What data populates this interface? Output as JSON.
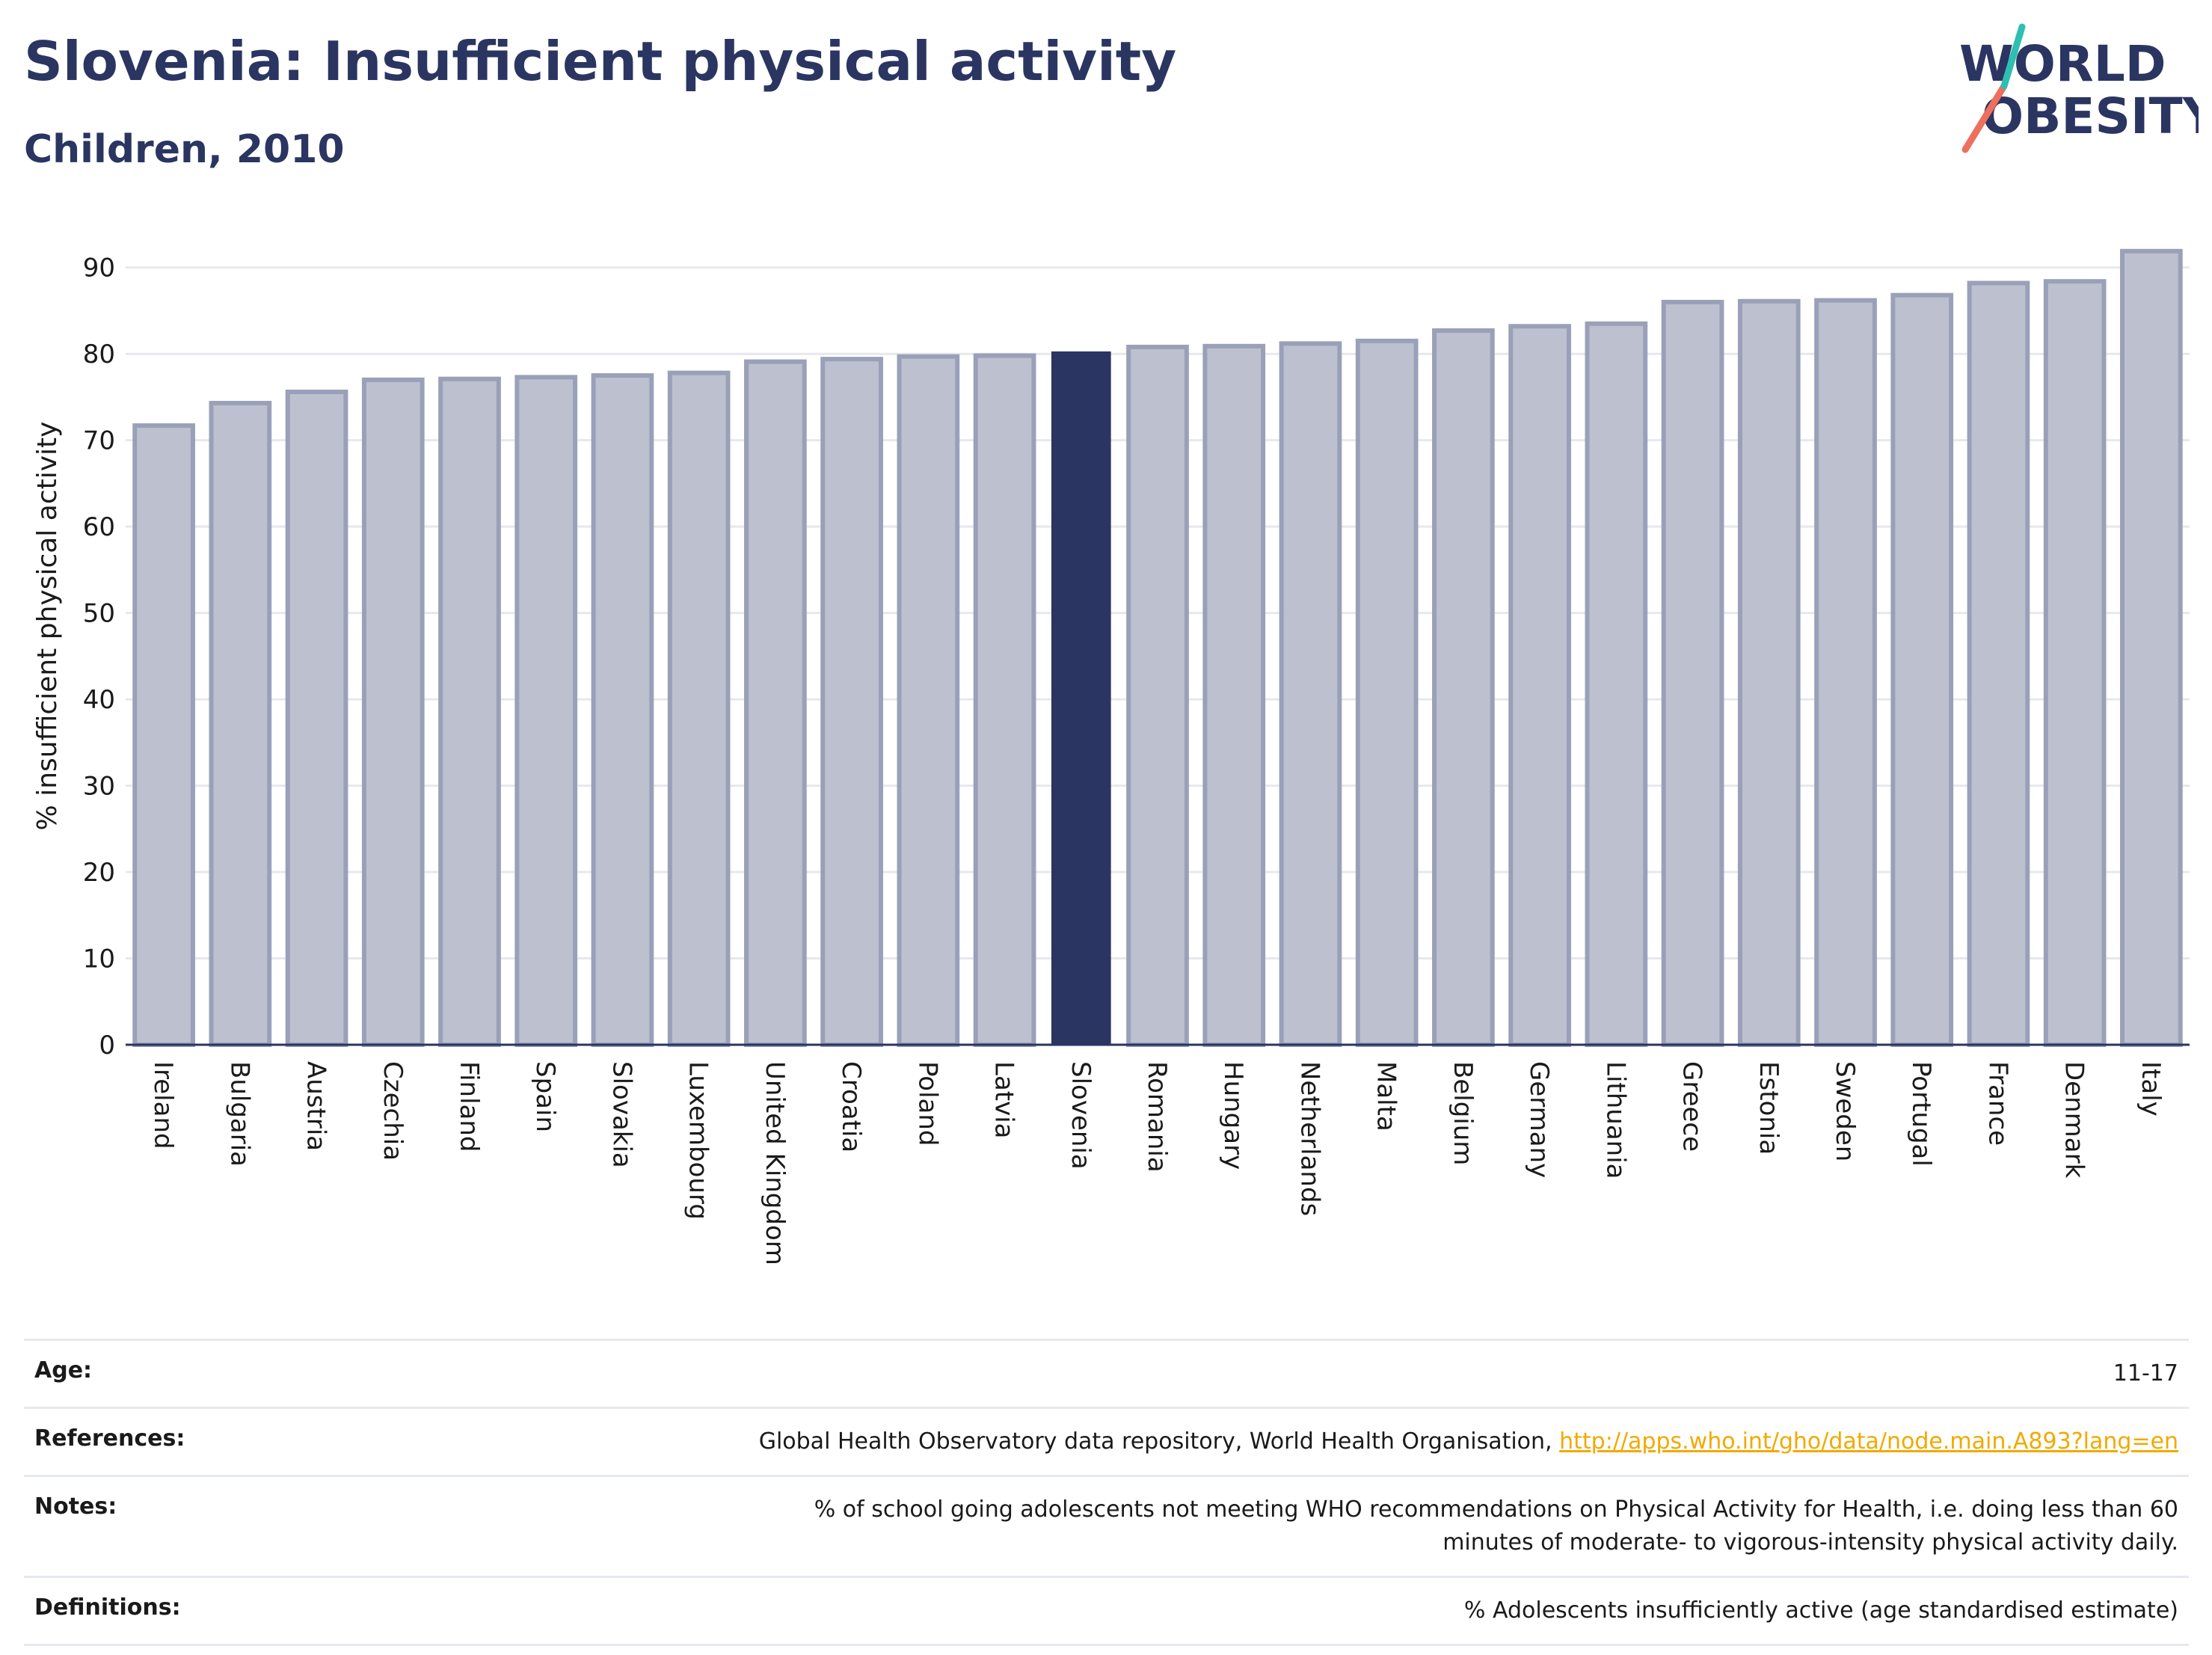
{
  "header": {
    "title": "Slovenia: Insufficient physical activity",
    "subtitle": "Children, 2010"
  },
  "logo": {
    "line1": "WORLD",
    "line2": "OBESITY"
  },
  "colors": {
    "bar": "#bdc0ce",
    "bar_stroke": "#9aa0b8",
    "highlight": "#2b3561",
    "title": "#2b3561",
    "link": "#f2a900",
    "logo_teal": "#2ebfb1",
    "logo_coral": "#ef6f5e"
  },
  "chart_data": {
    "type": "bar",
    "title": "Slovenia: Insufficient physical activity",
    "subtitle": "Children, 2010",
    "xlabel": "",
    "ylabel": "% insufficient physical activity",
    "ylim": [
      0,
      95
    ],
    "yticks": [
      0,
      10,
      20,
      30,
      40,
      50,
      60,
      70,
      80,
      90
    ],
    "grid": true,
    "legend": "none",
    "highlight": "Slovenia",
    "categories": [
      "Ireland",
      "Bulgaria",
      "Austria",
      "Czechia",
      "Finland",
      "Spain",
      "Slovakia",
      "Luxembourg",
      "United Kingdom",
      "Croatia",
      "Poland",
      "Latvia",
      "Slovenia",
      "Romania",
      "Hungary",
      "Netherlands",
      "Malta",
      "Belgium",
      "Germany",
      "Lithuania",
      "Greece",
      "Estonia",
      "Sweden",
      "Portugal",
      "France",
      "Denmark",
      "Italy"
    ],
    "values": [
      71.7,
      74.3,
      75.6,
      77.0,
      77.1,
      77.3,
      77.5,
      77.8,
      79.1,
      79.4,
      79.7,
      79.8,
      80.2,
      80.8,
      80.9,
      81.2,
      81.5,
      82.7,
      83.2,
      83.5,
      86.0,
      86.1,
      86.2,
      86.8,
      88.2,
      88.4,
      91.9
    ]
  },
  "info": [
    {
      "key": "Age:",
      "value": "11-17"
    },
    {
      "key": "References:",
      "value": "Global Health Observatory data repository, World Health Organisation,",
      "link": "http://apps.who.int/gho/data/node.main.A893?lang=en"
    },
    {
      "key": "Notes:",
      "value": "% of school going adolescents not meeting WHO recommendations on Physical Activity for Health, i.e. doing less than 60 minutes of moderate- to vigorous-intensity physical activity daily."
    },
    {
      "key": "Definitions:",
      "value": "% Adolescents insufficiently active (age standardised estimate)"
    }
  ]
}
